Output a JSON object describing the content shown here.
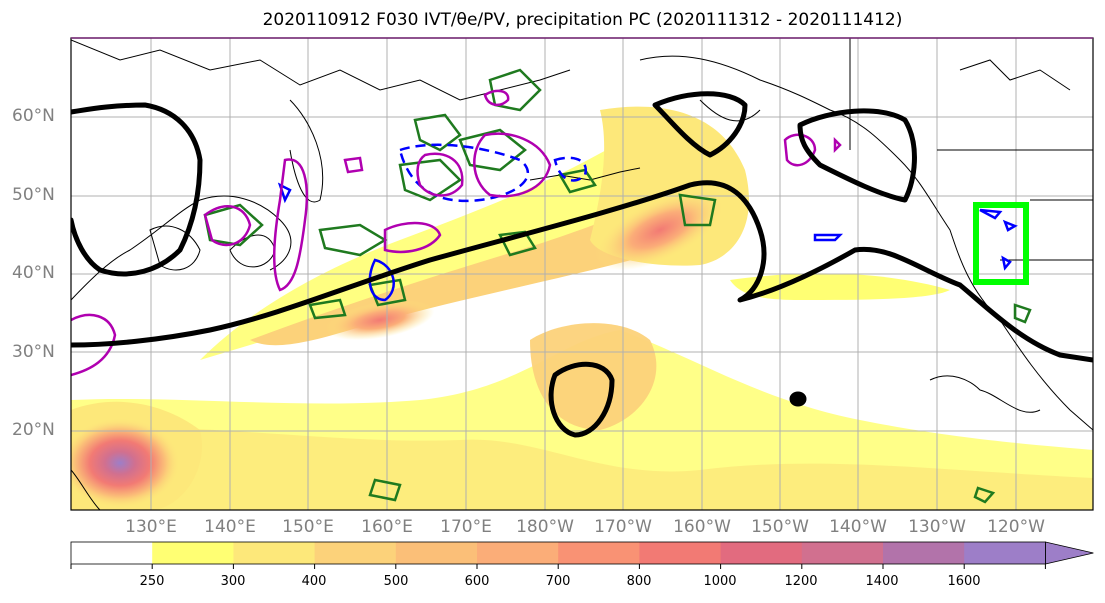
{
  "title": "2020110912 F030 IVT/θe/PV, precipitation PC (2020111312 - 2020111412)",
  "map": {
    "lat_labels": [
      "60°N",
      "50°N",
      "40°N",
      "30°N",
      "20°N"
    ],
    "lon_labels": [
      "130°E",
      "140°E",
      "150°E",
      "160°E",
      "170°E",
      "180°W",
      "170°W",
      "160°W",
      "150°W",
      "140°W",
      "130°W",
      "120°W"
    ],
    "highlight_box_color": "#00ff00",
    "contour_colors": {
      "theta_e": "#000000",
      "pv_positive": "#008000",
      "pv_negative": "#0000ff",
      "precip_pc": "#b000b0"
    }
  },
  "colorbar": {
    "levels": [
      "250",
      "300",
      "400",
      "500",
      "600",
      "700",
      "800",
      "1000",
      "1200",
      "1400",
      "1600"
    ],
    "colors": [
      "#ffffff",
      "#ffff73",
      "#fde87a",
      "#fcd27a",
      "#fbbf78",
      "#fbad78",
      "#f99274",
      "#f27a74",
      "#e26b7f",
      "#d1708f",
      "#b273aa",
      "#9d7ec8"
    ]
  }
}
